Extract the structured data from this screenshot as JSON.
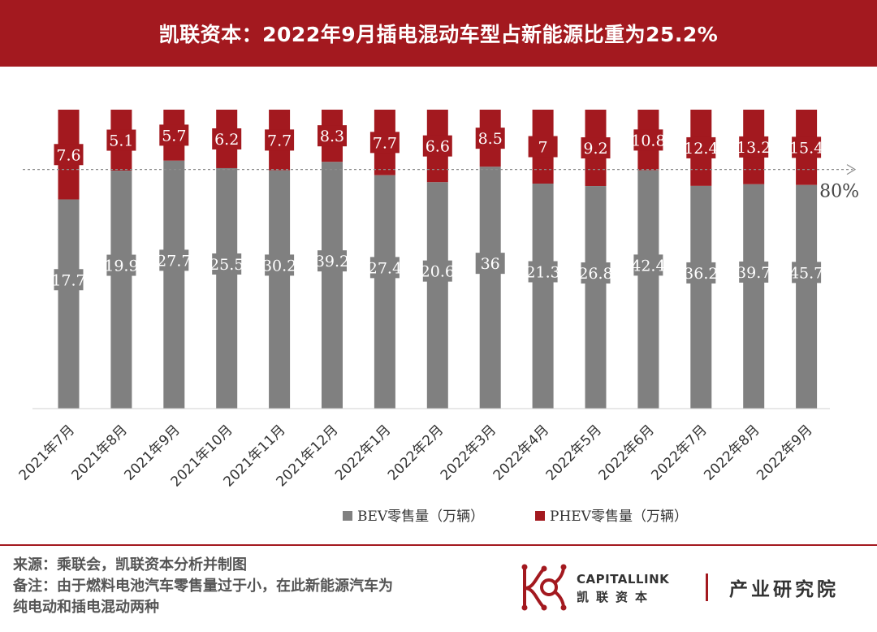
{
  "header": {
    "title": "凯联资本：2022年9月插电混动车型占新能源比重为25.2%"
  },
  "chart_data": {
    "type": "bar",
    "stacked": true,
    "normalized": "percent",
    "categories": [
      "2021年7月",
      "2021年8月",
      "2021年9月",
      "2021年10月",
      "2021年11月",
      "2021年12月",
      "2022年1月",
      "2022年2月",
      "2022年3月",
      "2022年4月",
      "2022年5月",
      "2022年6月",
      "2022年7月",
      "2022年8月",
      "2022年9月"
    ],
    "series": [
      {
        "name": "BEV零售量（万辆）",
        "color": "#808080",
        "values": [
          17.7,
          19.9,
          27.7,
          25.5,
          30.2,
          39.2,
          27.4,
          20.6,
          36,
          21.3,
          26.8,
          42.4,
          36.2,
          39.7,
          45.7
        ]
      },
      {
        "name": "PHEV零售量（万辆）",
        "color": "#a3191f",
        "values": [
          7.6,
          5.1,
          5.7,
          6.2,
          7.7,
          8.3,
          7.7,
          6.6,
          8.5,
          7,
          9.2,
          10.8,
          12.4,
          13.2,
          15.4
        ]
      }
    ],
    "reference_line": {
      "value": 80,
      "label": "80%"
    },
    "legend": "bottom",
    "grid": false
  },
  "footer": {
    "source": "来源：乘联会，凯联资本分析并制图",
    "note_line1": "备注：由于燃料电池汽车零售量过于小，在此新能源汽车为",
    "note_line2": "纯电动和插电混动两种"
  },
  "logo": {
    "name_en": "CAPITALLINK",
    "name_cn": "凯联资本",
    "division": "产业研究院"
  }
}
